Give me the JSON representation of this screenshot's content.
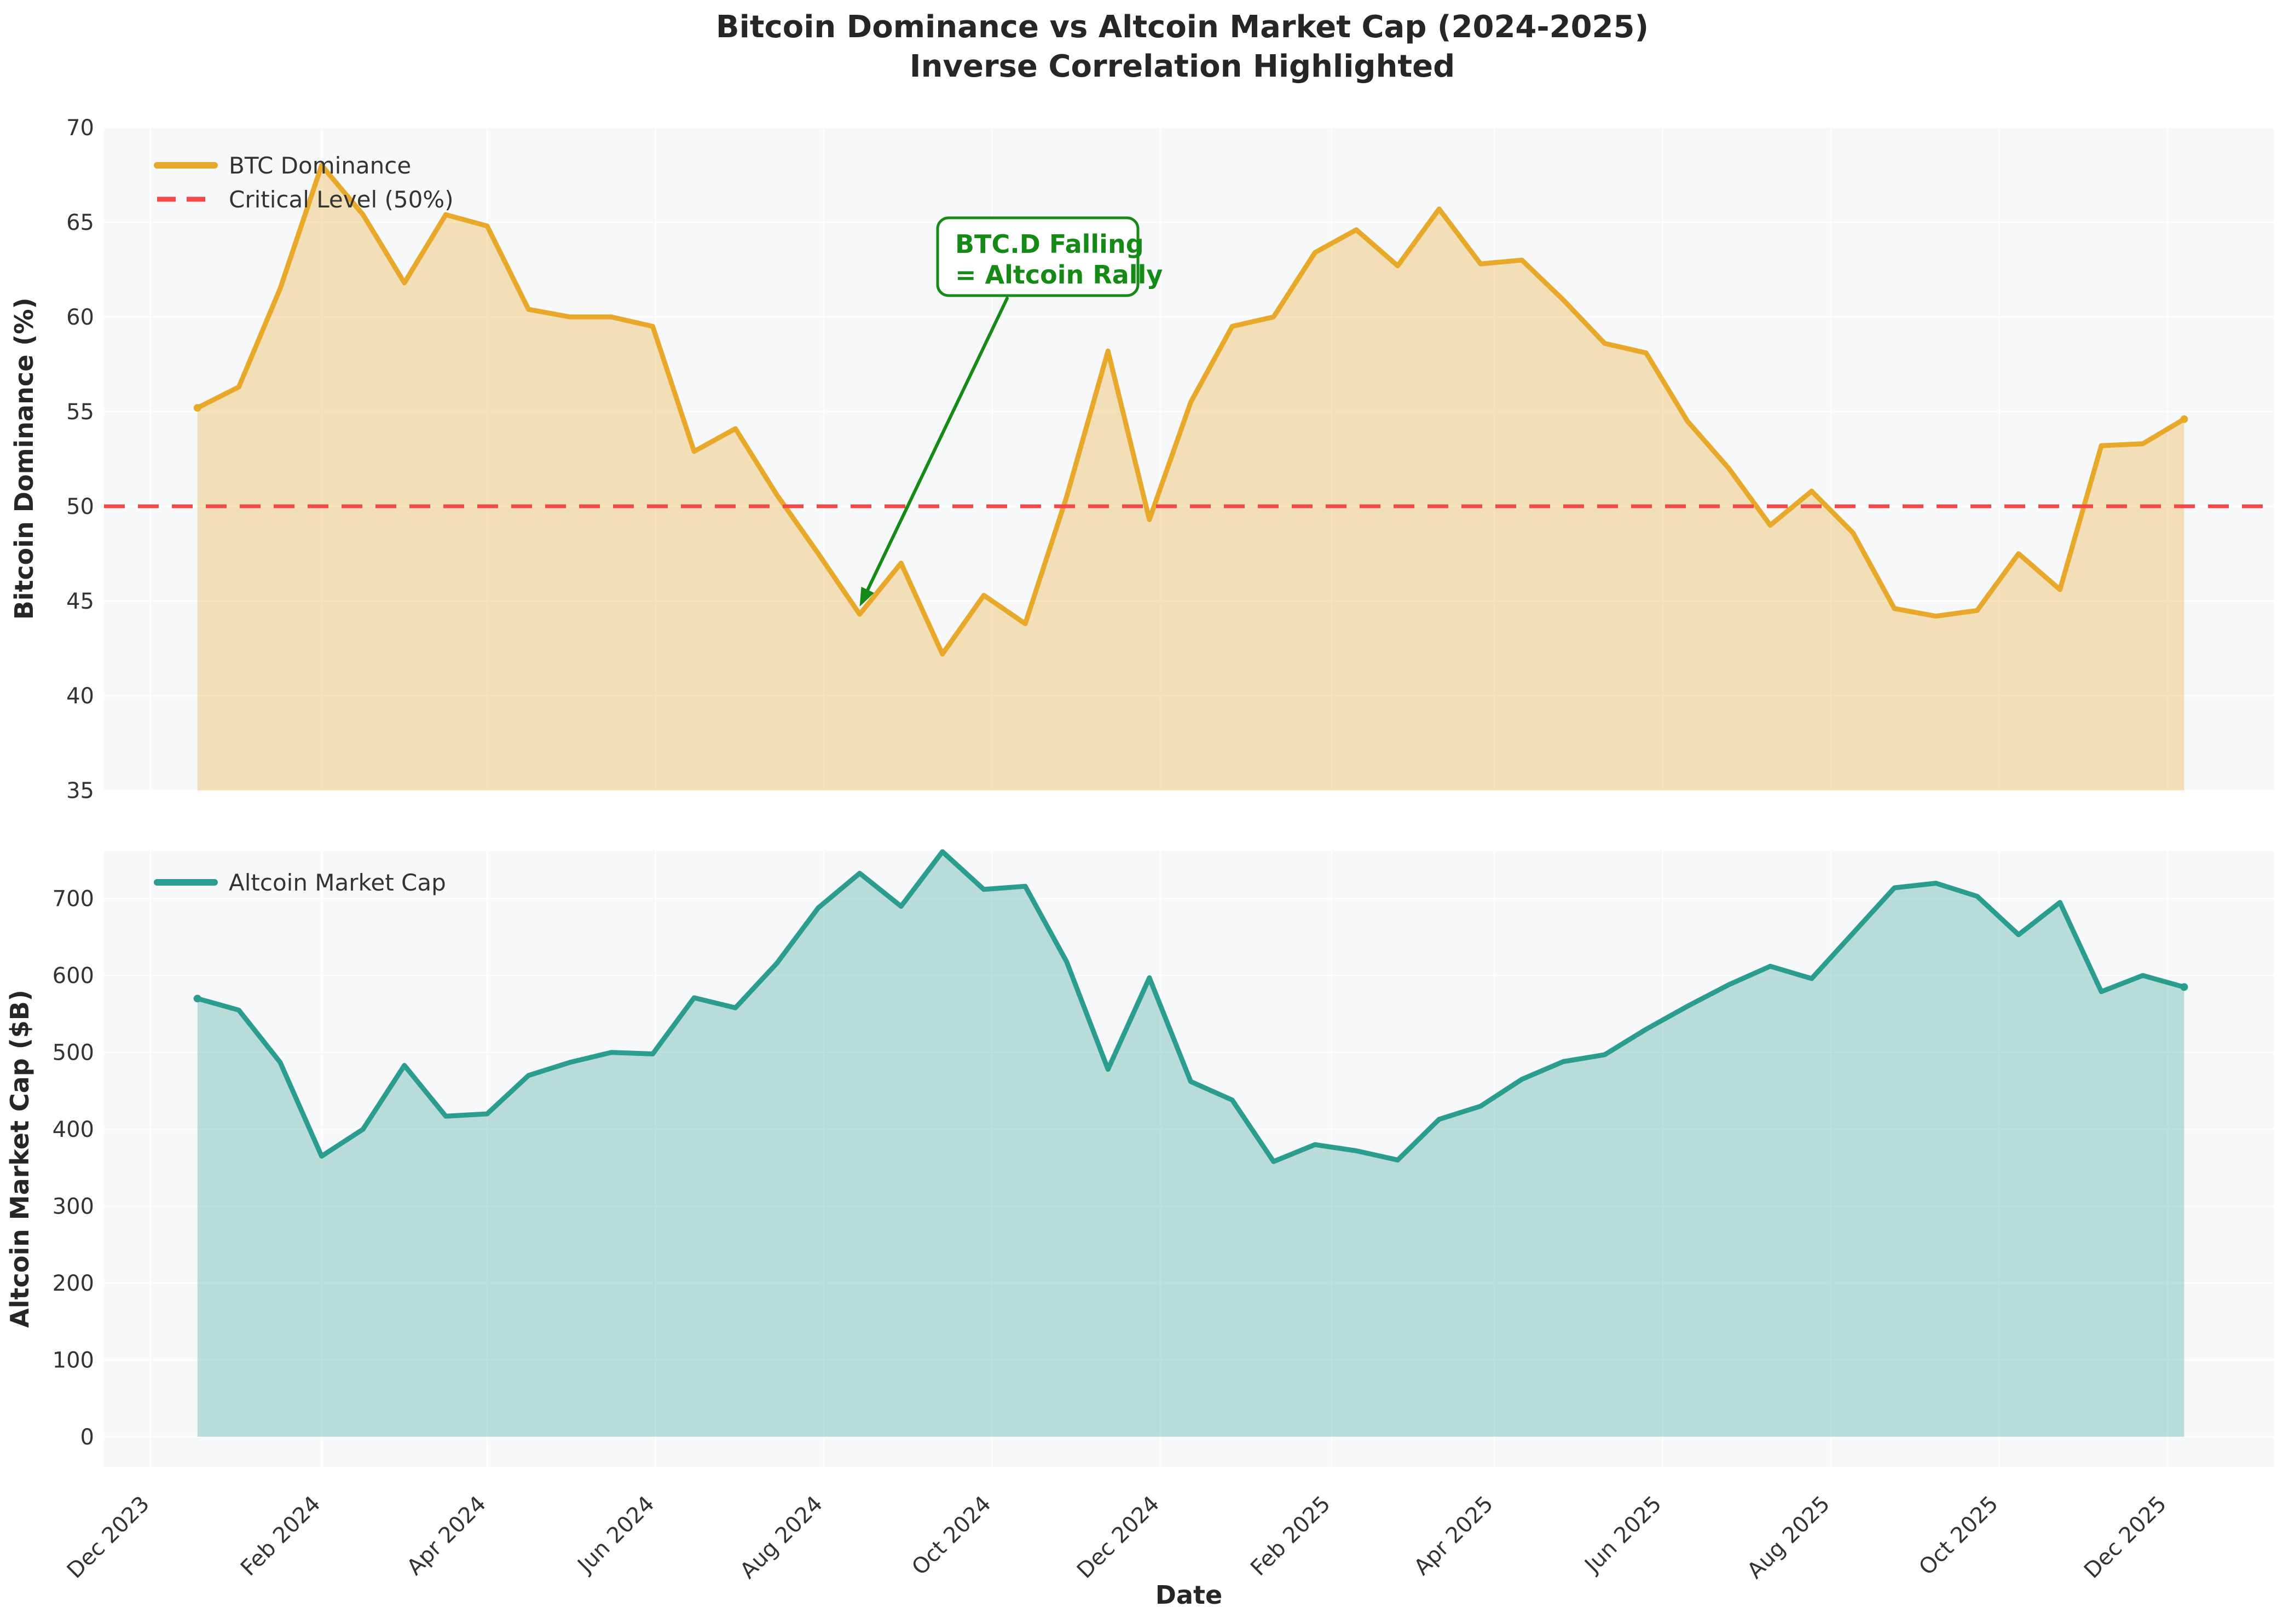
{
  "title": {
    "line1": "Bitcoin Dominance vs Altcoin Market Cap (2024-2025)",
    "line2": "Inverse Correlation Highlighted"
  },
  "xlabel": "Date",
  "colors": {
    "btc_line": "#E8A92B",
    "btc_fill": "rgba(232,169,43,0.32)",
    "alt_line": "#2A9D8F",
    "alt_fill": "rgba(42,157,143,0.30)",
    "critical_red": "#F34949",
    "annotation_green": "#168A16",
    "axes_bg": "#F7F8FA",
    "grid": "#FFFFFF",
    "text": "#333333"
  },
  "annotation": {
    "line1": "BTC.D Falling",
    "line2": "= Altcoin Rally",
    "target_date": "2024-08-14",
    "target_value": 44.3
  },
  "chart_data": [
    {
      "type": "area",
      "title": "",
      "ylabel": "Bitcoin Dominance (%)",
      "ylim": [
        35,
        70
      ],
      "yticks": [
        35,
        40,
        45,
        50,
        55,
        60,
        65,
        70
      ],
      "legend": [
        "BTC Dominance",
        "Critical Level (50%)"
      ],
      "legend_position": "upper-left",
      "grid": true,
      "critical_level": 50,
      "series_name": "BTC Dominance",
      "x": [
        "2023-12-18",
        "2024-01-02",
        "2024-01-17",
        "2024-02-01",
        "2024-02-16",
        "2024-03-02",
        "2024-03-17",
        "2024-04-01",
        "2024-04-16",
        "2024-05-01",
        "2024-05-16",
        "2024-05-31",
        "2024-06-15",
        "2024-06-30",
        "2024-07-15",
        "2024-07-30",
        "2024-08-14",
        "2024-08-29",
        "2024-09-13",
        "2024-09-28",
        "2024-10-13",
        "2024-10-28",
        "2024-11-12",
        "2024-11-27",
        "2024-12-12",
        "2024-12-27",
        "2025-01-11",
        "2025-01-26",
        "2025-02-10",
        "2025-02-25",
        "2025-03-12",
        "2025-03-27",
        "2025-04-11",
        "2025-04-26",
        "2025-05-11",
        "2025-05-26",
        "2025-06-10",
        "2025-06-25",
        "2025-07-10",
        "2025-07-25",
        "2025-08-09",
        "2025-08-24",
        "2025-09-08",
        "2025-09-23",
        "2025-10-08",
        "2025-10-23",
        "2025-11-07",
        "2025-11-22",
        "2025-12-07"
      ],
      "values": [
        55.2,
        56.3,
        61.5,
        68.0,
        65.4,
        61.8,
        65.4,
        64.8,
        60.4,
        60.0,
        60.0,
        59.5,
        52.9,
        54.1,
        50.6,
        47.5,
        44.3,
        47.0,
        42.2,
        45.3,
        43.8,
        50.5,
        58.2,
        49.3,
        55.5,
        59.5,
        60.0,
        63.4,
        64.6,
        62.7,
        65.7,
        62.8,
        63.0,
        60.9,
        58.6,
        58.1,
        54.5,
        52.0,
        49.0,
        50.8,
        48.6,
        44.6,
        44.2,
        44.5,
        47.5,
        45.6,
        53.2,
        53.3,
        54.6
      ]
    },
    {
      "type": "area",
      "title": "",
      "ylabel": "Altcoin Market Cap ($B)",
      "ylim": [
        0,
        760
      ],
      "yticks": [
        0,
        100,
        200,
        300,
        400,
        500,
        600,
        700
      ],
      "legend": [
        "Altcoin Market Cap"
      ],
      "legend_position": "upper-left",
      "grid": true,
      "series_name": "Altcoin Market Cap",
      "x": [
        "2023-12-18",
        "2024-01-02",
        "2024-01-17",
        "2024-02-01",
        "2024-02-16",
        "2024-03-02",
        "2024-03-17",
        "2024-04-01",
        "2024-04-16",
        "2024-05-01",
        "2024-05-16",
        "2024-05-31",
        "2024-06-15",
        "2024-06-30",
        "2024-07-15",
        "2024-07-30",
        "2024-08-14",
        "2024-08-29",
        "2024-09-13",
        "2024-09-28",
        "2024-10-13",
        "2024-10-28",
        "2024-11-12",
        "2024-11-27",
        "2024-12-12",
        "2024-12-27",
        "2025-01-11",
        "2025-01-26",
        "2025-02-10",
        "2025-02-25",
        "2025-03-12",
        "2025-03-27",
        "2025-04-11",
        "2025-04-26",
        "2025-05-11",
        "2025-05-26",
        "2025-06-10",
        "2025-06-25",
        "2025-07-10",
        "2025-07-25",
        "2025-08-09",
        "2025-08-24",
        "2025-09-08",
        "2025-09-23",
        "2025-10-08",
        "2025-10-23",
        "2025-11-07",
        "2025-11-22",
        "2025-12-07"
      ],
      "values": [
        570,
        555,
        487,
        365,
        400,
        483,
        417,
        420,
        470,
        487,
        500,
        498,
        571,
        558,
        616,
        688,
        733,
        690,
        761,
        712,
        716,
        618,
        478,
        597,
        462,
        438,
        358,
        380,
        372,
        360,
        413,
        430,
        465,
        488,
        497,
        530,
        560,
        588,
        612,
        596,
        655,
        714,
        720,
        703,
        653,
        695,
        579,
        600,
        585
      ]
    }
  ],
  "xticks": {
    "dates": [
      "2023-12-01",
      "2024-02-01",
      "2024-04-01",
      "2024-06-01",
      "2024-08-01",
      "2024-10-01",
      "2024-12-01",
      "2025-02-01",
      "2025-04-01",
      "2025-06-01",
      "2025-08-01",
      "2025-10-01",
      "2025-12-01"
    ],
    "labels": [
      "Dec 2023",
      "Feb 2024",
      "Apr 2024",
      "Jun 2024",
      "Aug 2024",
      "Oct 2024",
      "Dec 2024",
      "Feb 2025",
      "Apr 2025",
      "Jun 2025",
      "Aug 2025",
      "Oct 2025",
      "Dec 2025"
    ]
  }
}
